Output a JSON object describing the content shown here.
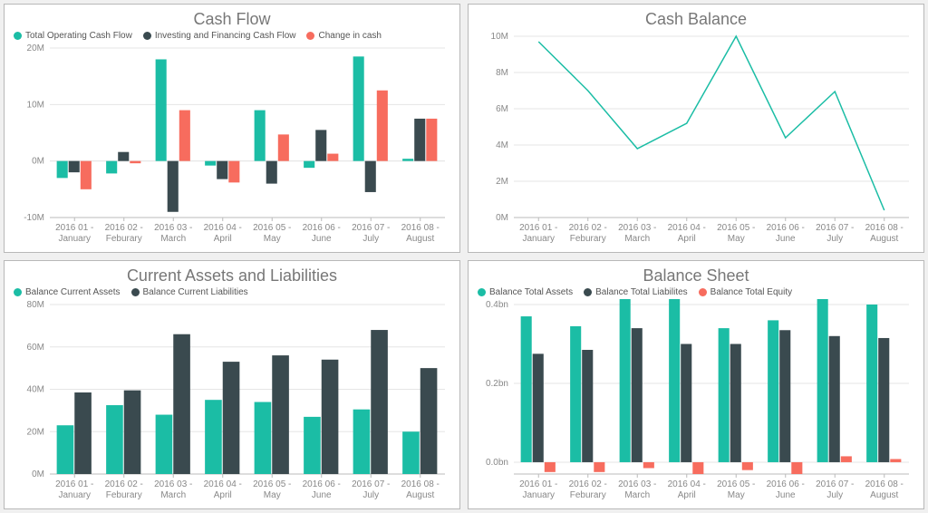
{
  "categories": [
    "2016 01 - January",
    "2016 02 - Feburary",
    "2016 03 - March",
    "2016 04 - April",
    "2016 05 - May",
    "2016 06 - June",
    "2016 07 - July",
    "2016 08 - August"
  ],
  "colors": {
    "teal": "#1bbda5",
    "dark": "#3a4a4f",
    "red": "#f76c5e",
    "grid": "#e5e5e5",
    "axis": "#bbbbbb",
    "text": "#888888",
    "title": "#777777"
  },
  "charts": {
    "cash_flow": {
      "title": "Cash Flow",
      "type": "bar",
      "legend": [
        {
          "label": "Total Operating Cash Flow",
          "color": "#1bbda5"
        },
        {
          "label": "Investing and Financing Cash Flow",
          "color": "#3a4a4f"
        },
        {
          "label": "Change in cash",
          "color": "#f76c5e"
        }
      ],
      "y": {
        "min": -10,
        "max": 20,
        "step": 10,
        "suffix": "M"
      },
      "series": [
        {
          "color": "#1bbda5",
          "values": [
            -3.0,
            -2.2,
            18.0,
            -0.8,
            9.0,
            -1.2,
            18.5,
            0.4
          ]
        },
        {
          "color": "#3a4a4f",
          "values": [
            -2.0,
            1.6,
            -9.0,
            -3.2,
            -4.0,
            5.5,
            -5.5,
            7.5
          ]
        },
        {
          "color": "#f76c5e",
          "values": [
            -5.0,
            -0.4,
            9.0,
            -3.8,
            4.7,
            1.3,
            12.5,
            7.5
          ]
        }
      ]
    },
    "cash_balance": {
      "title": "Cash Balance",
      "type": "line",
      "y": {
        "min": 0,
        "max": 10,
        "step": 2,
        "suffix": "M"
      },
      "series": [
        {
          "color": "#1bbda5",
          "values": [
            9.7,
            7.0,
            3.8,
            5.2,
            10.0,
            4.4,
            6.95,
            0.4
          ]
        }
      ]
    },
    "assets_liab": {
      "title": "Current Assets and Liabilities",
      "type": "bar",
      "legend": [
        {
          "label": "Balance Current Assets",
          "color": "#1bbda5"
        },
        {
          "label": "Balance Current Liabilities",
          "color": "#3a4a4f"
        }
      ],
      "y": {
        "min": 0,
        "max": 80,
        "step": 20,
        "suffix": "M"
      },
      "series": [
        {
          "color": "#1bbda5",
          "values": [
            23,
            32.5,
            28,
            35,
            34,
            27,
            30.5,
            20
          ]
        },
        {
          "color": "#3a4a4f",
          "values": [
            38.5,
            39.5,
            66,
            53,
            56,
            54,
            68,
            50
          ]
        }
      ]
    },
    "balance_sheet": {
      "title": "Balance Sheet",
      "type": "bar",
      "legend": [
        {
          "label": "Balance Total Assets",
          "color": "#1bbda5"
        },
        {
          "label": "Balance Total Liabilites",
          "color": "#3a4a4f"
        },
        {
          "label": "Balance Total Equity",
          "color": "#f76c5e"
        }
      ],
      "y": {
        "min": 0,
        "max": 0.4,
        "step": 0.2,
        "suffix": "bn"
      },
      "series": [
        {
          "color": "#1bbda5",
          "values": [
            0.37,
            0.345,
            0.445,
            0.43,
            0.34,
            0.36,
            0.425,
            0.4
          ]
        },
        {
          "color": "#3a4a4f",
          "values": [
            0.275,
            0.285,
            0.34,
            0.3,
            0.3,
            0.335,
            0.32,
            0.315
          ]
        },
        {
          "color": "#f76c5e",
          "values": [
            -0.025,
            -0.025,
            -0.015,
            -0.03,
            -0.02,
            -0.03,
            0.015,
            0.008
          ]
        }
      ]
    }
  }
}
